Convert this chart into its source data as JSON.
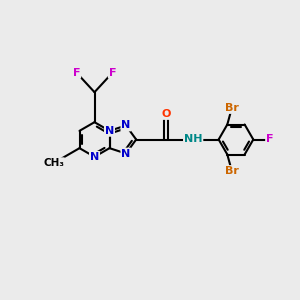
{
  "bg_color": "#ebebeb",
  "bond_color": "#000000",
  "bond_width": 1.5,
  "atom_colors": {
    "N": "#0000cc",
    "O": "#ff3300",
    "F": "#cc00cc",
    "Br": "#cc6600",
    "H": "#008888",
    "C": "#000000"
  },
  "font_size": 8.0
}
